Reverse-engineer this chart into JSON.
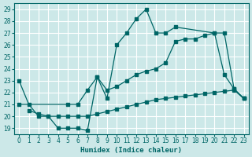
{
  "background_color": "#cce8e8",
  "grid_color": "#ffffff",
  "line_color": "#006666",
  "xlabel": "Humidex (Indice chaleur)",
  "xlim": [
    -0.5,
    23.5
  ],
  "ylim": [
    18.5,
    29.5
  ],
  "xticks": [
    0,
    1,
    2,
    3,
    4,
    5,
    6,
    7,
    8,
    9,
    10,
    11,
    12,
    13,
    14,
    15,
    16,
    17,
    18,
    19,
    20,
    21,
    22,
    23
  ],
  "yticks": [
    19,
    20,
    21,
    22,
    23,
    24,
    25,
    26,
    27,
    28,
    29
  ],
  "line1_x": [
    0,
    1,
    2,
    3,
    4,
    5,
    6,
    7,
    8,
    9,
    10,
    11,
    12,
    13,
    14,
    15,
    16,
    20,
    21,
    22,
    23
  ],
  "line1_y": [
    23,
    21,
    20,
    20,
    19,
    19,
    19,
    18.8,
    23.3,
    21.5,
    26,
    27,
    28.2,
    29,
    27,
    27,
    27.5,
    27,
    23.5,
    22.3,
    21.5
  ],
  "line2_x": [
    1,
    2,
    3,
    4,
    5,
    6,
    7,
    8,
    9,
    10,
    11,
    12,
    13,
    14,
    15,
    16,
    17,
    18,
    19,
    20,
    21,
    22,
    23
  ],
  "line2_y": [
    20.5,
    20.2,
    20.0,
    20.0,
    20.0,
    20.0,
    20.0,
    20.2,
    20.4,
    20.6,
    20.8,
    21.0,
    21.2,
    21.4,
    21.5,
    21.6,
    21.7,
    21.8,
    21.9,
    22.0,
    22.1,
    22.2,
    21.5
  ],
  "line3_x": [
    0,
    5,
    6,
    7,
    8,
    9,
    10,
    11,
    12,
    13,
    14,
    15,
    16,
    17,
    18,
    19,
    20,
    21,
    22,
    23
  ],
  "line3_y": [
    21,
    21,
    21,
    22.2,
    23.3,
    22.2,
    22.5,
    23,
    23.5,
    23.8,
    24,
    24.5,
    26.3,
    26.5,
    26.5,
    26.8,
    27,
    27,
    22.3,
    21.5
  ]
}
